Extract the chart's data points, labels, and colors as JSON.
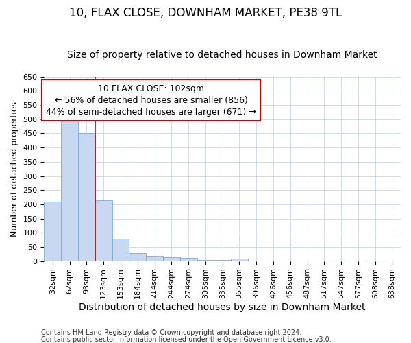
{
  "title": "10, FLAX CLOSE, DOWNHAM MARKET, PE38 9TL",
  "subtitle": "Size of property relative to detached houses in Downham Market",
  "xlabel": "Distribution of detached houses by size in Downham Market",
  "ylabel": "Number of detached properties",
  "categories": [
    "32sqm",
    "62sqm",
    "93sqm",
    "123sqm",
    "153sqm",
    "184sqm",
    "214sqm",
    "244sqm",
    "274sqm",
    "305sqm",
    "335sqm",
    "365sqm",
    "396sqm",
    "426sqm",
    "456sqm",
    "487sqm",
    "517sqm",
    "547sqm",
    "577sqm",
    "608sqm",
    "638sqm"
  ],
  "values": [
    210,
    530,
    450,
    215,
    78,
    28,
    18,
    13,
    10,
    4,
    3,
    9,
    0,
    0,
    0,
    0,
    0,
    2,
    0,
    2,
    0
  ],
  "bar_color": "#c8d8f0",
  "bar_edgecolor": "#7aaad0",
  "vline_color": "#cc0000",
  "vline_at_index": 2,
  "ylim": [
    0,
    650
  ],
  "yticks": [
    0,
    50,
    100,
    150,
    200,
    250,
    300,
    350,
    400,
    450,
    500,
    550,
    600,
    650
  ],
  "annotation_line1": "10 FLAX CLOSE: 102sqm",
  "annotation_line2": "← 56% of detached houses are smaller (856)",
  "annotation_line3": "44% of semi-detached houses are larger (671) →",
  "annotation_box_color": "#ffffff",
  "annotation_border_color": "#cc0000",
  "footer1": "Contains HM Land Registry data © Crown copyright and database right 2024.",
  "footer2": "Contains public sector information licensed under the Open Government Licence v3.0.",
  "background_color": "#ffffff",
  "grid_color": "#d0daea",
  "title_fontsize": 12,
  "subtitle_fontsize": 10,
  "xlabel_fontsize": 10,
  "ylabel_fontsize": 9,
  "tick_fontsize": 8,
  "annotation_fontsize": 9,
  "footer_fontsize": 7
}
